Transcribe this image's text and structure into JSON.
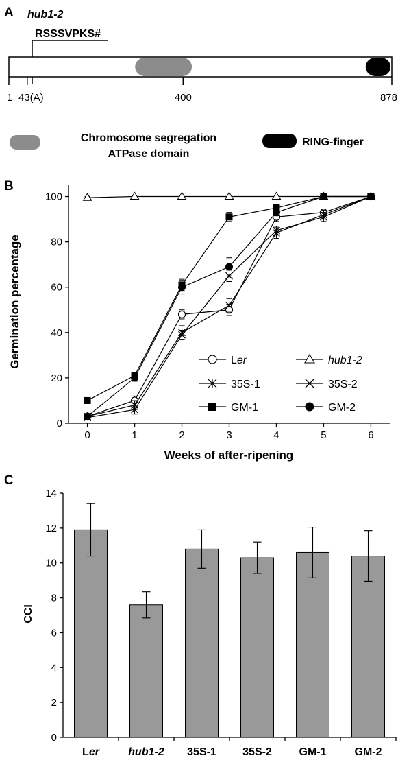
{
  "panel_a": {
    "letter": "A",
    "mutant_label": "hub1-2",
    "peptide": "RSSSVPKS#",
    "ticks": [
      {
        "value": 1,
        "label": "1"
      },
      {
        "value": 43,
        "label": "43(A)"
      },
      {
        "value": 400,
        "label": "400"
      },
      {
        "value": 878,
        "label": "878"
      }
    ],
    "protein_length": 878,
    "domains": [
      {
        "name_line1": "Chromosome segregation",
        "name_line2": "ATPase domain",
        "start": 290,
        "end": 420,
        "color": "#8c8c8c"
      },
      {
        "name_line1": "RING-finger",
        "name_line2": "",
        "start": 818,
        "end": 875,
        "color": "#000000"
      }
    ]
  },
  "chart_data": [
    {
      "panel": "B",
      "type": "line",
      "ylabel": "Germination percentage",
      "xlabel": "Weeks of after-ripening",
      "x": [
        0,
        1,
        2,
        3,
        4,
        5,
        6
      ],
      "x_ticks": [
        "0",
        "1",
        "2",
        "3",
        "4",
        "5",
        "6"
      ],
      "y_ticks": [
        "0",
        "20",
        "40",
        "60",
        "80",
        "100"
      ],
      "xlim": [
        -0.4,
        6.4
      ],
      "ylim": [
        0,
        105
      ],
      "grid": false,
      "legend_position": "bottom-right",
      "series": [
        {
          "name": "Ler",
          "name_prefix": "L",
          "name_italic": "er",
          "marker": "open-circle",
          "values": [
            3,
            10,
            48,
            50,
            91,
            93,
            100
          ],
          "errors": [
            1,
            2,
            2,
            2.5,
            2,
            1,
            0.5
          ]
        },
        {
          "name": "hub1-2",
          "marker": "open-triangle",
          "italic": true,
          "values": [
            99.5,
            100,
            100,
            100,
            100,
            100,
            100
          ],
          "errors": [
            0.5,
            0,
            0,
            0,
            0,
            0,
            0
          ]
        },
        {
          "name": "35S-1",
          "marker": "asterisk",
          "values": [
            3,
            8,
            40,
            52,
            84,
            92,
            100
          ],
          "errors": [
            1,
            2,
            3,
            3,
            2.5,
            2,
            0.5
          ]
        },
        {
          "name": "35S-2",
          "marker": "x",
          "values": [
            2.5,
            6,
            39,
            65,
            85,
            91,
            100
          ],
          "errors": [
            1,
            2,
            2,
            2.5,
            2,
            2,
            0.5
          ]
        },
        {
          "name": "GM-1",
          "marker": "filled-square",
          "values": [
            10,
            21,
            61,
            91,
            95,
            100,
            100
          ],
          "errors": [
            1,
            1.5,
            2.5,
            2,
            1.5,
            0.5,
            0.5
          ]
        },
        {
          "name": "GM-2",
          "marker": "filled-circle",
          "values": [
            3,
            20,
            60,
            69,
            93,
            100,
            100
          ],
          "errors": [
            1,
            1.5,
            3,
            4,
            1.5,
            0.5,
            0.5
          ]
        }
      ]
    },
    {
      "panel": "C",
      "type": "bar",
      "ylabel": "CCI",
      "xlabel": "",
      "categories": [
        "Ler",
        "hub1-2",
        "35S-1",
        "35S-2",
        "GM-1",
        "GM-2"
      ],
      "values": [
        11.9,
        7.6,
        10.8,
        10.3,
        10.6,
        10.4
      ],
      "errors": [
        1.5,
        0.75,
        1.1,
        0.9,
        1.45,
        1.45
      ],
      "y_ticks": [
        "0",
        "2",
        "4",
        "6",
        "8",
        "10",
        "12",
        "14"
      ],
      "ylim": [
        0,
        14
      ],
      "bar_color": "#999999",
      "grid": false
    }
  ]
}
